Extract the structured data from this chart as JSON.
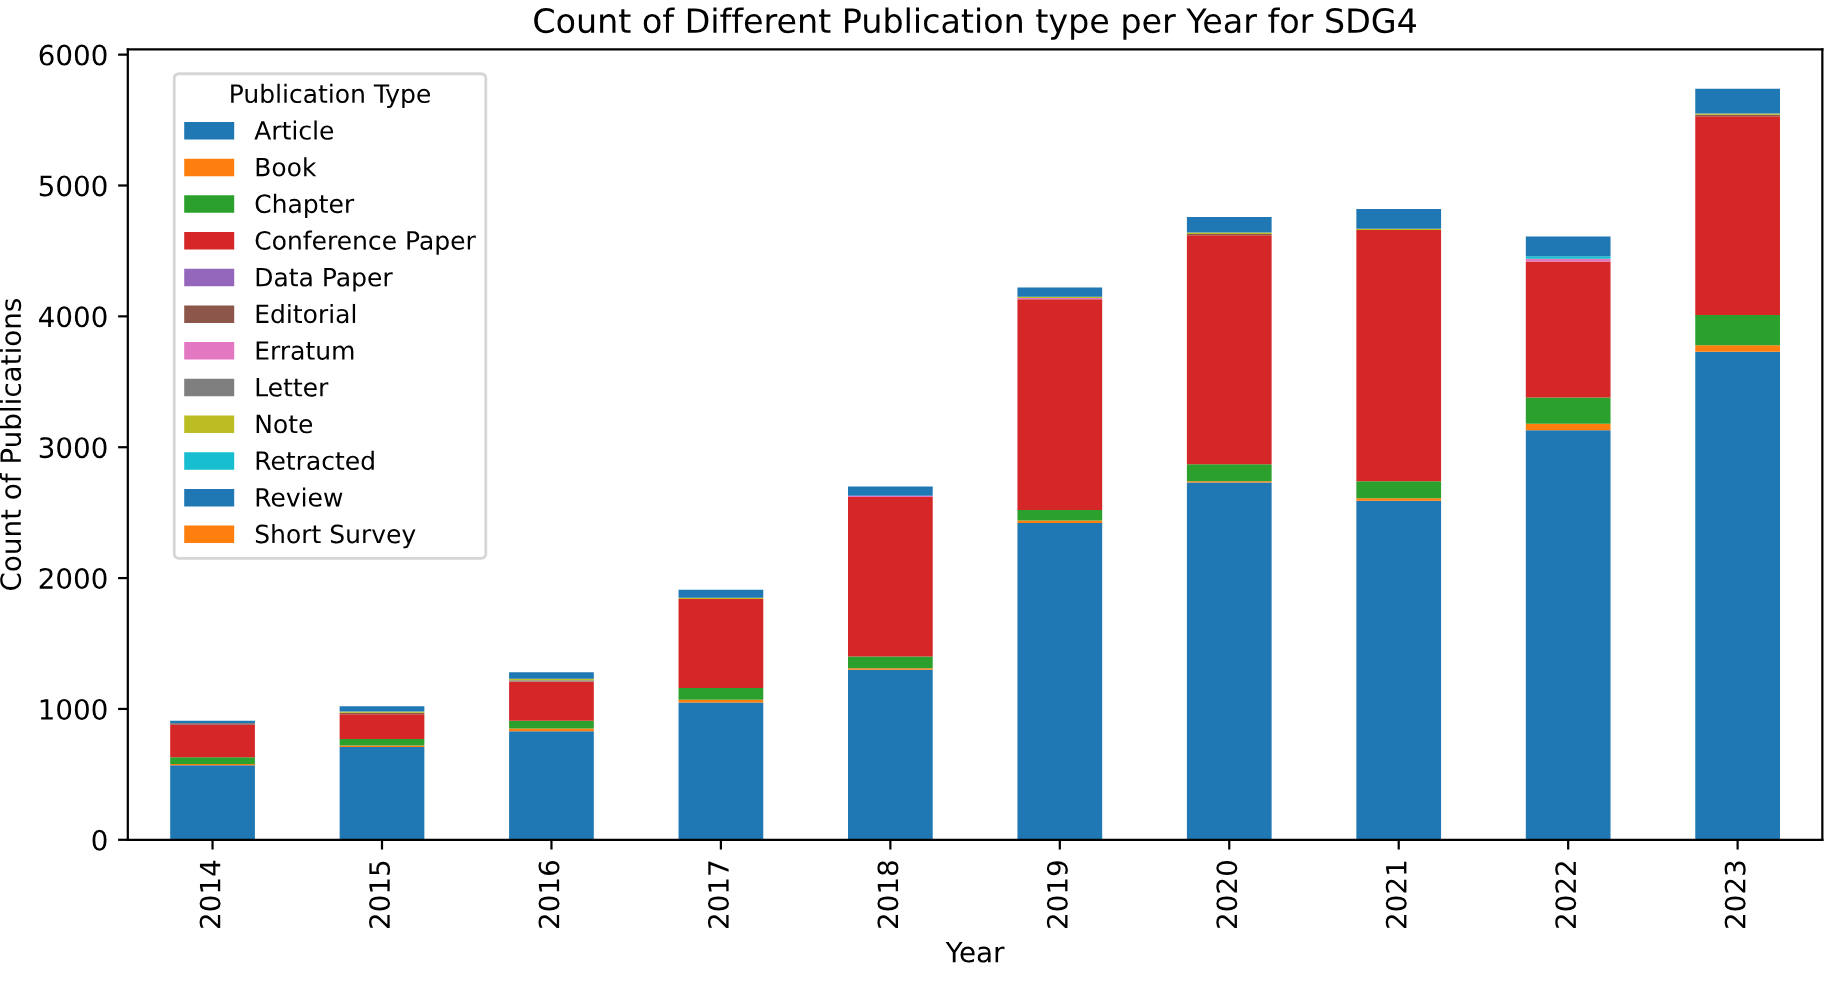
{
  "chart_data": {
    "type": "bar",
    "stacked": true,
    "title": "Count of Different Publication type per Year for SDG4",
    "xlabel": "Year",
    "ylabel": "Count of Publications",
    "legend_title": "Publication Type",
    "legend": "top left",
    "grid": false,
    "categories": [
      "2014",
      "2015",
      "2016",
      "2017",
      "2018",
      "2019",
      "2020",
      "2021",
      "2022",
      "2023"
    ],
    "ylim": [
      0,
      6040
    ],
    "yticks": [
      0,
      1000,
      2000,
      3000,
      4000,
      5000,
      6000
    ],
    "series": [
      {
        "name": "Article",
        "color": "#1f77b4",
        "values": [
          570,
          710,
          830,
          1050,
          1300,
          2420,
          2730,
          2590,
          3130,
          3730
        ]
      },
      {
        "name": "Book",
        "color": "#ff7f0e",
        "values": [
          10,
          10,
          20,
          20,
          10,
          20,
          10,
          20,
          50,
          50
        ]
      },
      {
        "name": "Chapter",
        "color": "#2ca02c",
        "values": [
          50,
          50,
          60,
          90,
          90,
          80,
          130,
          130,
          200,
          230
        ]
      },
      {
        "name": "Conference Paper",
        "color": "#d62728",
        "values": [
          250,
          190,
          300,
          680,
          1220,
          1610,
          1750,
          1920,
          1040,
          1520
        ]
      },
      {
        "name": "Data Paper",
        "color": "#9467bd",
        "values": [
          0,
          0,
          0,
          0,
          0,
          0,
          0,
          0,
          0,
          0
        ]
      },
      {
        "name": "Editorial",
        "color": "#8c564b",
        "values": [
          10,
          10,
          0,
          0,
          0,
          0,
          10,
          0,
          0,
          10
        ]
      },
      {
        "name": "Erratum",
        "color": "#e377c2",
        "values": [
          0,
          0,
          0,
          0,
          10,
          10,
          0,
          0,
          20,
          0
        ]
      },
      {
        "name": "Letter",
        "color": "#7f7f7f",
        "values": [
          0,
          0,
          10,
          0,
          0,
          0,
          0,
          0,
          0,
          0
        ]
      },
      {
        "name": "Note",
        "color": "#bcbd22",
        "values": [
          0,
          10,
          10,
          10,
          0,
          10,
          10,
          10,
          0,
          10
        ]
      },
      {
        "name": "Retracted",
        "color": "#17becf",
        "values": [
          0,
          0,
          0,
          0,
          0,
          0,
          0,
          0,
          20,
          0
        ]
      },
      {
        "name": "Review",
        "color": "#1f77b4",
        "values": [
          20,
          40,
          50,
          60,
          70,
          70,
          120,
          150,
          150,
          190
        ]
      },
      {
        "name": "Short Survey",
        "color": "#ff7f0e",
        "values": [
          0,
          0,
          0,
          0,
          0,
          0,
          0,
          0,
          0,
          0
        ]
      }
    ]
  }
}
